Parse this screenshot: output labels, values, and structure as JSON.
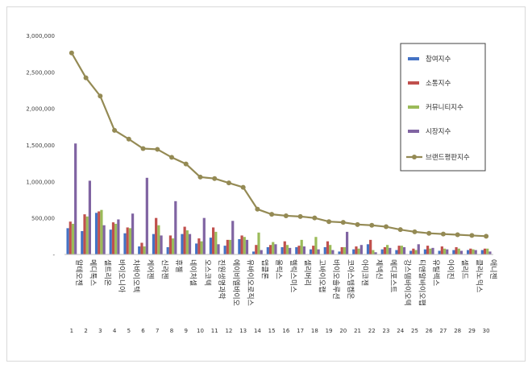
{
  "chart_data": {
    "type": "bar",
    "categories": [
      "1",
      "2",
      "3",
      "4",
      "5",
      "6",
      "7",
      "8",
      "9",
      "10",
      "11",
      "12",
      "13",
      "14",
      "15",
      "16",
      "17",
      "18",
      "19",
      "20",
      "21",
      "22",
      "23",
      "24",
      "25",
      "26",
      "27",
      "28",
      "29",
      "30"
    ],
    "names": [
      "알테오젠",
      "메디톡스",
      "셀트리온",
      "바이오니아",
      "차바이오텍",
      "케어젠",
      "신라젠",
      "휴젤",
      "네이처셀",
      "오스코텍",
      "진원생명과학",
      "에이비엘바이오",
      "유바이오로직스",
      "앱클론",
      "올릭스",
      "헬릭스미스",
      "셀리버리",
      "고바이오랩",
      "바이오솔루션",
      "코아스템켐온",
      "아미코젠",
      "제넥신",
      "메디포스트",
      "강스템바이오텍",
      "티앤알바이오팹",
      "유틸렉스",
      "아이진",
      "셀리드",
      "클리노믹스",
      "애니젠"
    ],
    "ylim": [
      0,
      3000000
    ],
    "yticks": [
      0,
      500000,
      1000000,
      1500000,
      2000000,
      2500000,
      3000000
    ],
    "ytick_labels": [
      "-",
      "500,000",
      "1,000,000",
      "1,500,000",
      "2,000,000",
      "2,500,000",
      "3,000,000"
    ],
    "legend_position": "top-right",
    "series": [
      {
        "name": "참여지수",
        "color": "#4472c4",
        "values": [
          360000,
          320000,
          570000,
          340000,
          290000,
          110000,
          280000,
          100000,
          280000,
          150000,
          230000,
          120000,
          210000,
          40000,
          100000,
          100000,
          100000,
          70000,
          100000,
          40000,
          70000,
          140000,
          70000,
          60000,
          50000,
          70000,
          50000,
          60000,
          60000,
          60000
        ]
      },
      {
        "name": "소통지수",
        "color": "#c0504d",
        "values": [
          450000,
          550000,
          590000,
          440000,
          370000,
          160000,
          500000,
          260000,
          380000,
          220000,
          370000,
          200000,
          260000,
          130000,
          130000,
          180000,
          120000,
          120000,
          180000,
          100000,
          110000,
          200000,
          100000,
          120000,
          80000,
          120000,
          110000,
          100000,
          80000,
          80000
        ]
      },
      {
        "name": "커뮤니티지수",
        "color": "#9bbb59",
        "values": [
          420000,
          520000,
          610000,
          420000,
          360000,
          110000,
          400000,
          220000,
          330000,
          180000,
          310000,
          200000,
          240000,
          300000,
          170000,
          130000,
          200000,
          240000,
          130000,
          100000,
          80000,
          60000,
          130000,
          120000,
          60000,
          80000,
          80000,
          80000,
          70000,
          80000
        ]
      },
      {
        "name": "시장지수",
        "color": "#8064a2",
        "values": [
          1520000,
          1010000,
          400000,
          480000,
          560000,
          1050000,
          260000,
          730000,
          280000,
          500000,
          140000,
          460000,
          200000,
          60000,
          140000,
          90000,
          110000,
          70000,
          60000,
          310000,
          130000,
          30000,
          90000,
          100000,
          140000,
          90000,
          70000,
          50000,
          60000,
          40000
        ]
      },
      {
        "name": "브랜드평판지수",
        "color": "#948a54",
        "values": [
          2760000,
          2420000,
          2170000,
          1700000,
          1580000,
          1450000,
          1440000,
          1330000,
          1240000,
          1060000,
          1040000,
          980000,
          920000,
          620000,
          550000,
          530000,
          520000,
          500000,
          450000,
          440000,
          410000,
          400000,
          380000,
          340000,
          310000,
          290000,
          280000,
          270000,
          260000,
          250000
        ]
      }
    ]
  }
}
